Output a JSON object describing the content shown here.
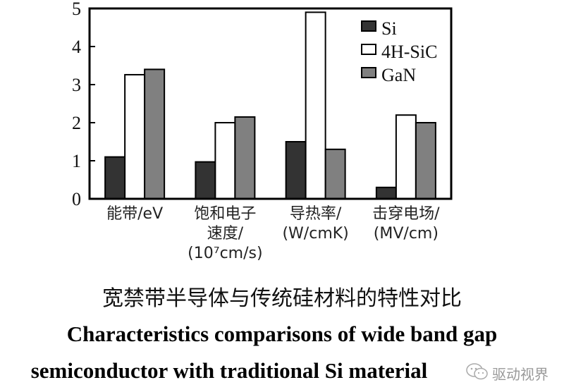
{
  "chart_data": {
    "type": "bar",
    "title": "宽禁带半导体与传统硅材料的特性对比",
    "subtitle": "Characteristics comparisons of wide band gap semiconductor with traditional Si material",
    "categories": [
      {
        "lines": [
          "能带/eV"
        ]
      },
      {
        "lines": [
          "饱和电子",
          "速度/",
          "(10⁷cm/s)"
        ]
      },
      {
        "lines": [
          "导热率/",
          "(W/cmK)"
        ]
      },
      {
        "lines": [
          "击穿电场/",
          "(MV/cm)"
        ]
      }
    ],
    "series": [
      {
        "name": "Si",
        "color": "#333333",
        "values": [
          1.1,
          0.97,
          1.5,
          0.3
        ]
      },
      {
        "name": "4H-SiC",
        "color": "#ffffff",
        "values": [
          3.26,
          2.0,
          4.9,
          2.2
        ]
      },
      {
        "name": "GaN",
        "color": "#808080",
        "values": [
          3.4,
          2.15,
          1.3,
          2.0
        ]
      }
    ],
    "ylim": [
      0,
      5
    ],
    "yticks": [
      "0",
      "1",
      "2",
      "3",
      "4",
      "5"
    ],
    "xlabel": "",
    "ylabel": "",
    "grid": false,
    "legend_position": "top-right"
  },
  "captions": {
    "zh": "宽禁带半导体与传统硅材料的特性对比",
    "en_line1": "Characteristics comparisons of wide band gap",
    "en_line2": "semiconductor with traditional Si material"
  },
  "watermark": {
    "text": "驱动视界",
    "icon": "wechat-icon"
  }
}
